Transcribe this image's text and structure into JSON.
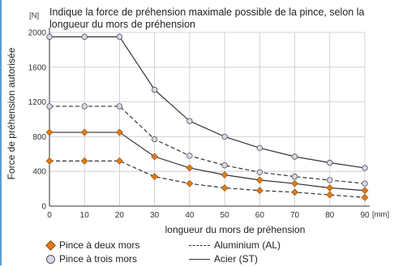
{
  "chart_data": {
    "type": "line",
    "title": "Indique la force de préhension maximale possible de la pince, selon la longueur du mors de préhension",
    "xlabel": "longueur du mors de préhension",
    "ylabel": "Force de préhension autorisée",
    "x_unit": "[mm]",
    "y_unit": "[N]",
    "xlim": [
      0,
      90
    ],
    "ylim": [
      0,
      2000
    ],
    "x_ticks": [
      0,
      10,
      20,
      30,
      40,
      50,
      60,
      70,
      80,
      90
    ],
    "y_ticks": [
      0,
      400,
      800,
      1200,
      1600,
      2000
    ],
    "grid": true,
    "x": [
      0,
      10,
      20,
      30,
      40,
      50,
      60,
      70,
      80,
      90
    ],
    "series": [
      {
        "name": "Pince à trois mors / Acier (ST)",
        "marker": "circle",
        "line": "solid",
        "values": [
          1950,
          1950,
          1950,
          1340,
          980,
          800,
          670,
          570,
          500,
          440
        ]
      },
      {
        "name": "Pince à trois mors / Aluminium (AL)",
        "marker": "circle",
        "line": "dashed",
        "values": [
          1150,
          1150,
          1150,
          770,
          580,
          470,
          390,
          340,
          300,
          260
        ]
      },
      {
        "name": "Pince à deux mors / Acier (ST)",
        "marker": "diamond",
        "line": "solid",
        "values": [
          850,
          850,
          850,
          570,
          440,
          360,
          300,
          260,
          210,
          180
        ]
      },
      {
        "name": "Pince à deux mors / Aluminium (AL)",
        "marker": "diamond",
        "line": "dashed",
        "values": [
          520,
          520,
          520,
          340,
          260,
          210,
          180,
          160,
          130,
          100
        ]
      }
    ],
    "legend": [
      {
        "label": "Pince à deux mors",
        "symbol": "diamond"
      },
      {
        "label": "Aluminium (AL)",
        "symbol": "dashed-line"
      },
      {
        "label": "Pince à trois mors",
        "symbol": "circle"
      },
      {
        "label": "Acier (ST)",
        "symbol": "solid-line"
      }
    ],
    "legend_position": "bottom",
    "colors": {
      "diamond_fill": "#e07b1a",
      "circle_fill": "#d4d8e8",
      "line": "#333333",
      "grid": "#c8c8c8",
      "frame": "#5b9bd5"
    }
  }
}
